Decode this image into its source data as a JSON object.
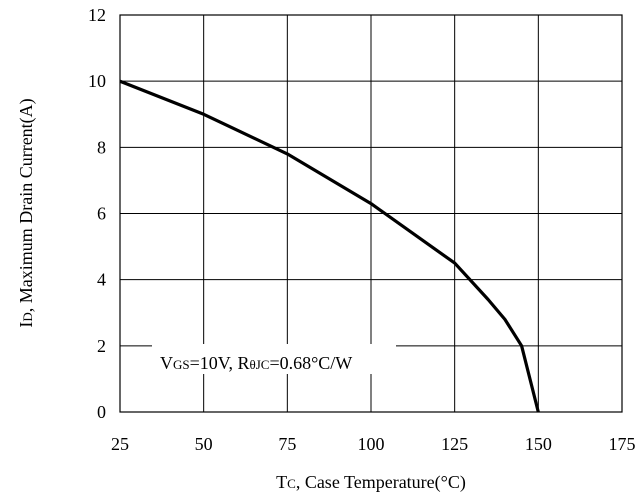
{
  "chart_data": {
    "type": "line",
    "xlabel": "Tc, Case Temperature(°C)",
    "ylabel": "ID, Maximum Drain Current(A)",
    "xlim": [
      25,
      175
    ],
    "ylim": [
      0,
      12
    ],
    "xticks": [
      25,
      50,
      75,
      100,
      125,
      150,
      175
    ],
    "yticks": [
      0,
      2,
      4,
      6,
      8,
      10,
      12
    ],
    "grid": true,
    "annotation": "VGS=10V, RθJC=0.68°C/W",
    "series": [
      {
        "x": [
          25,
          50,
          75,
          100,
          125,
          135,
          140,
          145,
          150
        ],
        "y": [
          10,
          9,
          7.8,
          6.3,
          4.5,
          3.4,
          2.8,
          2.0,
          0
        ]
      }
    ]
  },
  "labels": {
    "xlabel_main": "T",
    "xlabel_sub": "C",
    "xlabel_rest": ", Case Temperature(°C)",
    "ylabel_main": "I",
    "ylabel_sub": "D",
    "ylabel_rest": ", Maximum Drain Current(A)",
    "annot_v": "V",
    "annot_gs": "GS",
    "annot_mid": "=10V, R",
    "annot_theta": "θJC",
    "annot_end": "=0.68°C/W"
  }
}
